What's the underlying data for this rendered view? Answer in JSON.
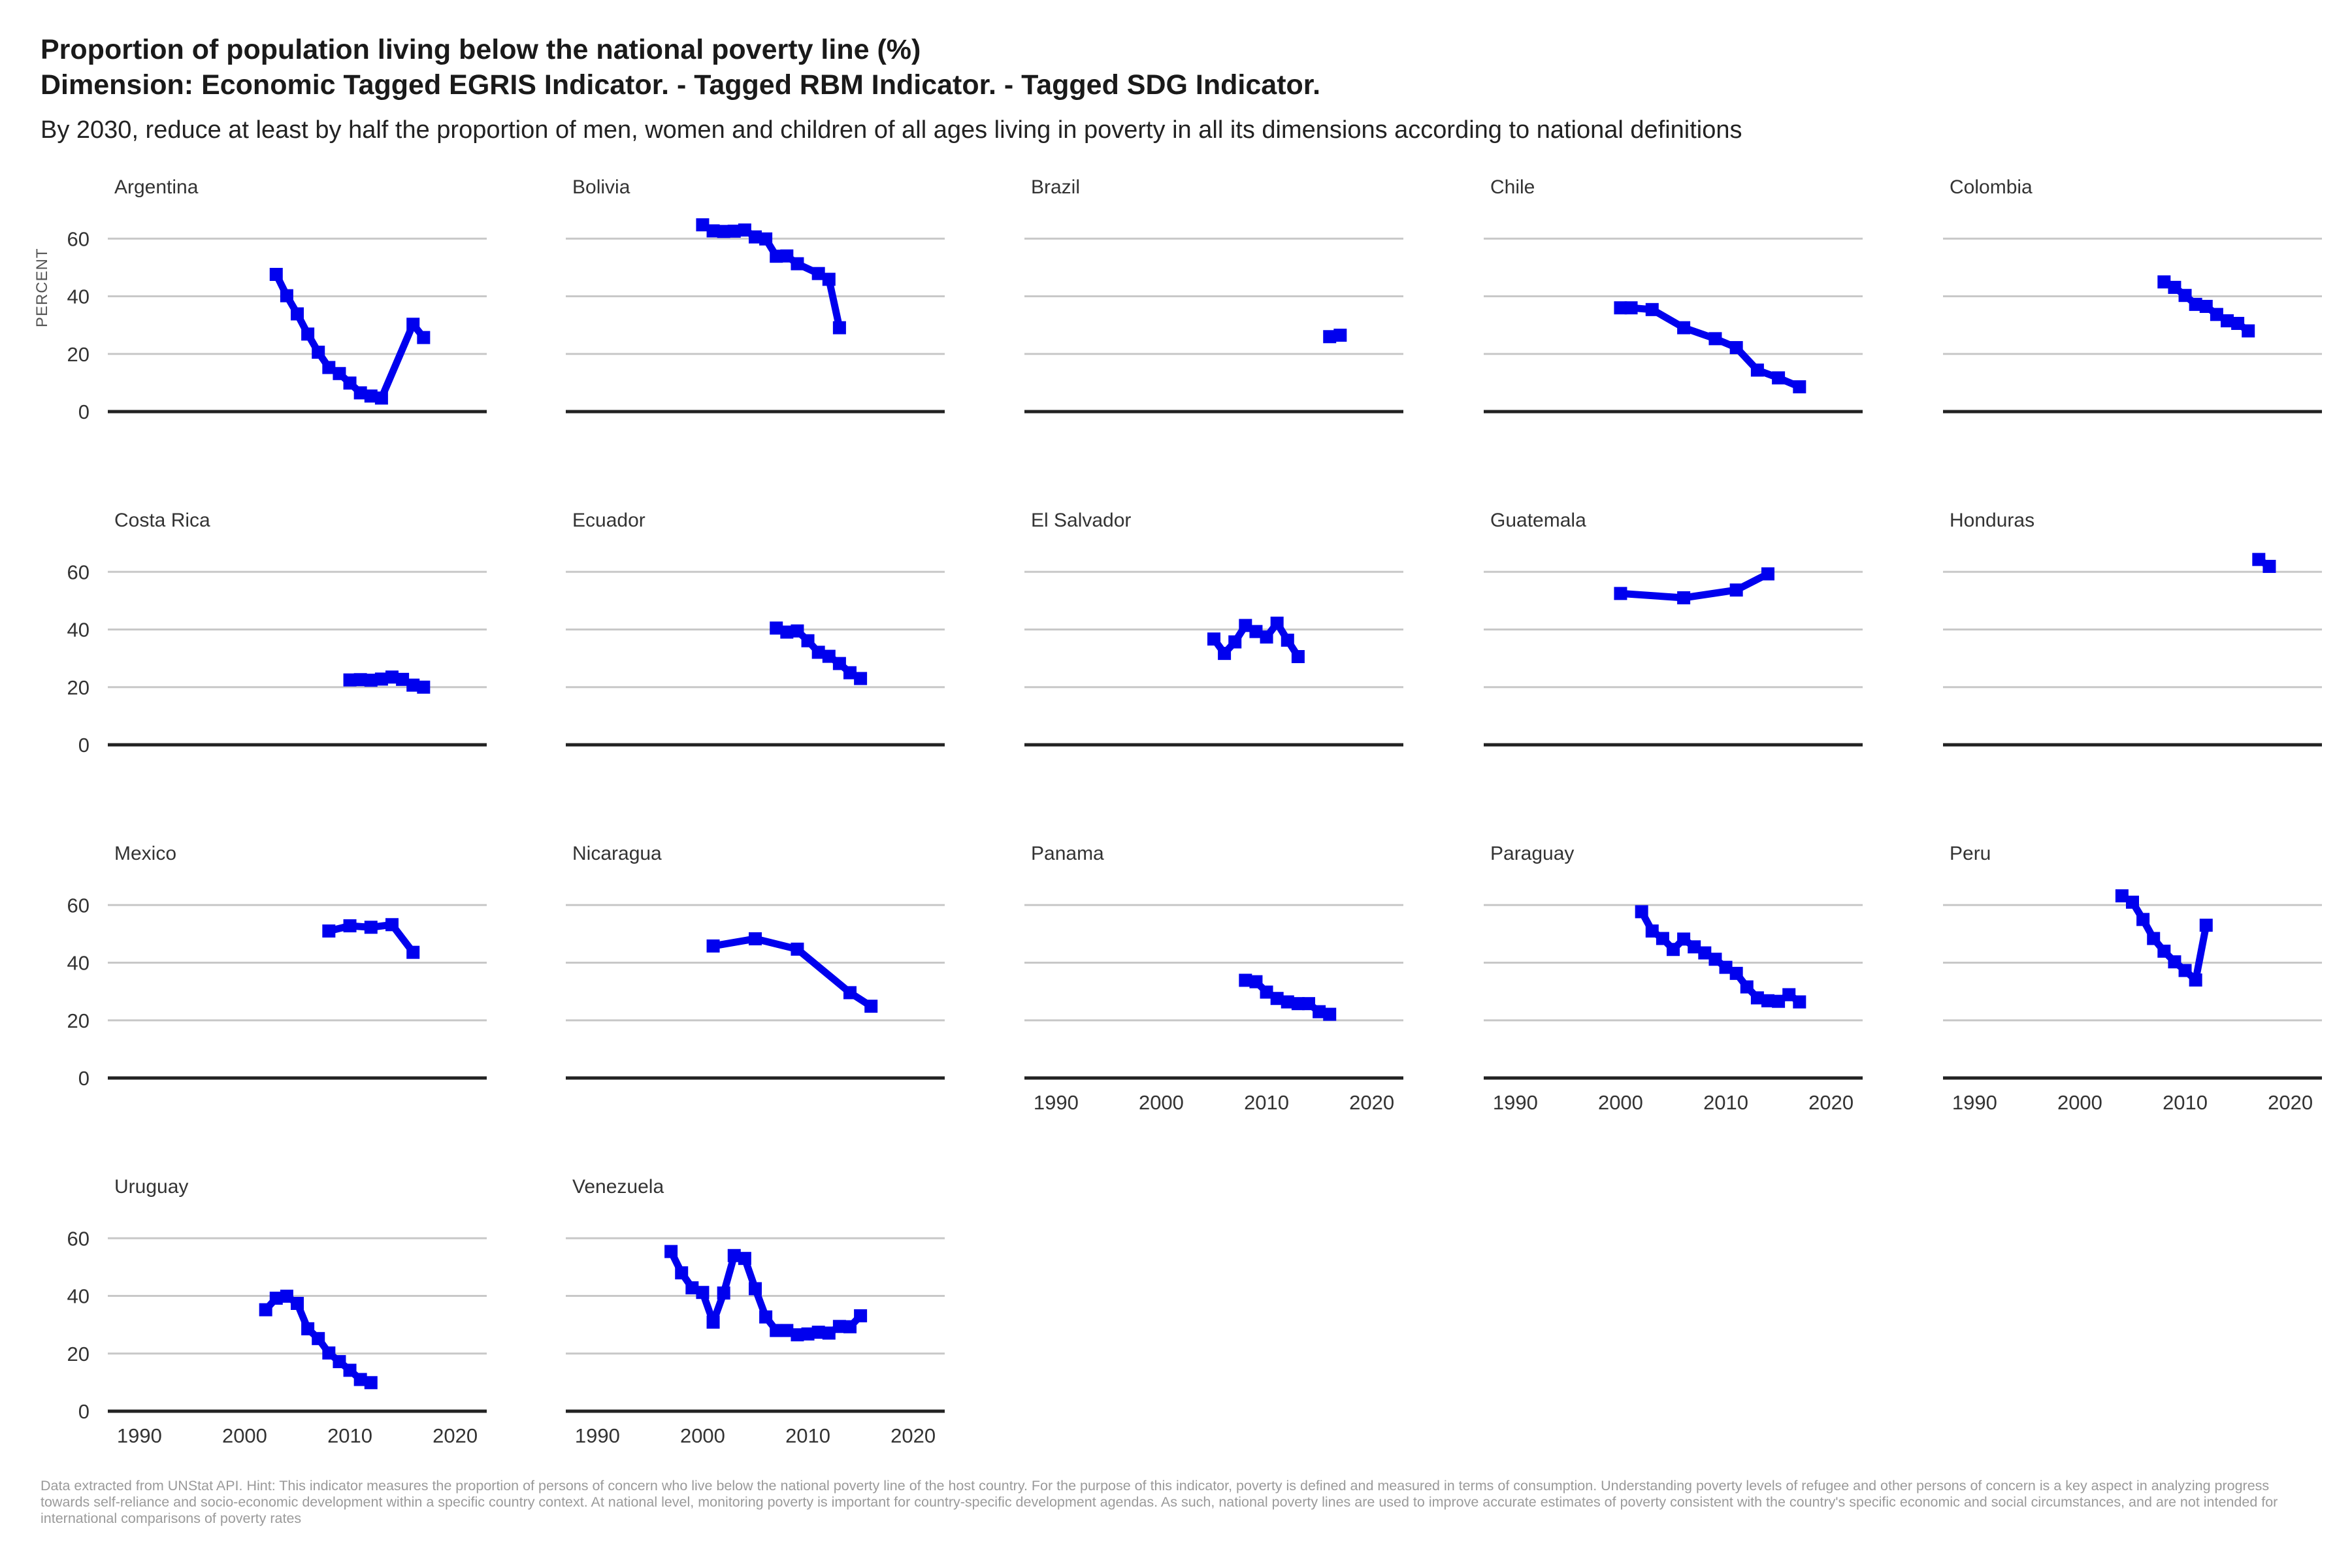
{
  "title_line1": "Proportion of population living below the national poverty line (%)",
  "title_line2": "Dimension: Economic Tagged EGRIS Indicator. - Tagged RBM  Indicator. - Tagged SDG Indicator.",
  "subtitle": "By 2030, reduce at least by half the proportion of men, women and children of all ages living in poverty in all its dimensions according to national definitions",
  "caption": "Data extracted from UNStat API. Hint: This indicator measures the proportion of persons of concern who live below the national poverty line of the host country. For the purpose of this indicator, poverty is defined and measured in terms of consumption. Understanding poverty levels of refugee and other persons of concern is a key aspect in analyzing progress towards self-reliance and socio-economic development within a specific country context. At national level, monitoring poverty is important for country-specific development agendas. As such, national poverty lines are used to improve accurate estimates of poverty consistent with the country's specific economic and social circumstances, and are not intended for international comparisons of poverty rates",
  "chart_data": {
    "type": "line",
    "layout": "small-multiples",
    "ylabel": "PERCENT",
    "xlim": [
      1987,
      2023
    ],
    "ylim": [
      0,
      68
    ],
    "yticks": [
      0,
      20,
      40,
      60
    ],
    "xticks": [
      1990,
      2000,
      2010,
      2020
    ],
    "grid": true,
    "series_color": "#0000ee",
    "panels": [
      {
        "name": "Argentina",
        "x": [
          2003,
          2004,
          2005,
          2006,
          2007,
          2008,
          2009,
          2010,
          2011,
          2012,
          2013,
          2016,
          2017
        ],
        "y": [
          47.6,
          40.2,
          33.9,
          26.9,
          20.6,
          15.3,
          13.2,
          9.9,
          6.5,
          5.4,
          4.7,
          30.3,
          25.7
        ]
      },
      {
        "name": "Bolivia",
        "x": [
          2000,
          2001,
          2002,
          2003,
          2004,
          2005,
          2006,
          2007,
          2008,
          2009,
          2011,
          2012,
          2013
        ],
        "y": [
          64.8,
          62.7,
          62.5,
          62.6,
          63.0,
          60.6,
          59.9,
          53.9,
          54.0,
          51.3,
          47.9,
          45.9,
          29.1
        ]
      },
      {
        "name": "Brazil",
        "x": [
          2016,
          2017
        ],
        "y": [
          26.0,
          26.5
        ]
      },
      {
        "name": "Chile",
        "x": [
          2000,
          2001,
          2003,
          2006,
          2009,
          2011,
          2013,
          2015,
          2017
        ],
        "y": [
          36.0,
          36.0,
          35.4,
          29.1,
          25.3,
          22.2,
          14.4,
          11.7,
          8.6
        ]
      },
      {
        "name": "Colombia",
        "x": [
          2008,
          2009,
          2010,
          2011,
          2012,
          2013,
          2014,
          2015,
          2016
        ],
        "y": [
          45.0,
          43.1,
          40.3,
          37.2,
          36.5,
          33.7,
          31.5,
          30.6,
          28.0
        ]
      },
      {
        "name": "Costa Rica",
        "x": [
          2010,
          2011,
          2012,
          2013,
          2014,
          2015,
          2016,
          2017
        ],
        "y": [
          22.5,
          22.6,
          22.4,
          22.8,
          23.5,
          22.7,
          20.7,
          20.0
        ]
      },
      {
        "name": "Ecuador",
        "x": [
          2007,
          2008,
          2009,
          2010,
          2011,
          2012,
          2013,
          2014,
          2015
        ],
        "y": [
          40.5,
          39.1,
          39.5,
          36.1,
          32.1,
          30.7,
          28.2,
          25.0,
          23.0
        ]
      },
      {
        "name": "El Salvador",
        "x": [
          2005,
          2006,
          2007,
          2008,
          2009,
          2010,
          2011,
          2012,
          2013
        ],
        "y": [
          36.7,
          31.7,
          35.7,
          41.4,
          39.3,
          37.4,
          42.2,
          36.3,
          30.6
        ]
      },
      {
        "name": "Guatemala",
        "x": [
          2000,
          2006,
          2011,
          2014
        ],
        "y": [
          52.5,
          51.0,
          53.7,
          59.3
        ]
      },
      {
        "name": "Honduras",
        "x": [
          2017,
          2018
        ],
        "y": [
          64.3,
          61.9
        ]
      },
      {
        "name": "Mexico",
        "x": [
          2008,
          2010,
          2012,
          2014,
          2016
        ],
        "y": [
          51.0,
          52.8,
          52.3,
          53.2,
          43.6
        ]
      },
      {
        "name": "Nicaragua",
        "x": [
          2001,
          2005,
          2009,
          2014,
          2016
        ],
        "y": [
          45.8,
          48.3,
          44.7,
          29.6,
          24.9
        ]
      },
      {
        "name": "Panama",
        "x": [
          2008,
          2009,
          2010,
          2011,
          2012,
          2013,
          2014,
          2015,
          2016
        ],
        "y": [
          33.9,
          33.4,
          29.8,
          27.6,
          26.4,
          25.8,
          25.8,
          23.0,
          22.1
        ]
      },
      {
        "name": "Paraguay",
        "x": [
          2002,
          2003,
          2004,
          2005,
          2006,
          2007,
          2008,
          2009,
          2010,
          2011,
          2012,
          2013,
          2014,
          2015,
          2016,
          2017
        ],
        "y": [
          57.7,
          51.0,
          48.4,
          44.6,
          48.2,
          45.5,
          43.4,
          41.2,
          38.4,
          36.3,
          31.6,
          27.8,
          26.8,
          26.6,
          28.9,
          26.4
        ]
      },
      {
        "name": "Peru",
        "x": [
          2004,
          2005,
          2006,
          2007,
          2008,
          2009,
          2010,
          2011,
          2012
        ],
        "y": [
          63.2,
          61.0,
          55.0,
          48.4,
          44.0,
          40.3,
          37.3,
          34.0,
          53.0
        ]
      },
      {
        "name": "Uruguay",
        "x": [
          2002,
          2003,
          2004,
          2005,
          2006,
          2007,
          2008,
          2009,
          2010,
          2011,
          2012
        ],
        "y": [
          35.2,
          39.2,
          39.9,
          37.4,
          28.6,
          25.2,
          20.2,
          17.2,
          14.2,
          11.0,
          9.9
        ]
      },
      {
        "name": "Venezuela",
        "x": [
          1997,
          1998,
          1999,
          2000,
          2001,
          2002,
          2003,
          2004,
          2005,
          2006,
          2007,
          2008,
          2009,
          2010,
          2011,
          2012,
          2013,
          2014,
          2015
        ],
        "y": [
          55.4,
          48.0,
          42.8,
          41.2,
          30.9,
          41.0,
          54.0,
          53.0,
          42.5,
          32.7,
          28.0,
          28.0,
          26.5,
          26.8,
          27.4,
          27.1,
          29.4,
          29.3,
          33.1
        ]
      }
    ]
  }
}
